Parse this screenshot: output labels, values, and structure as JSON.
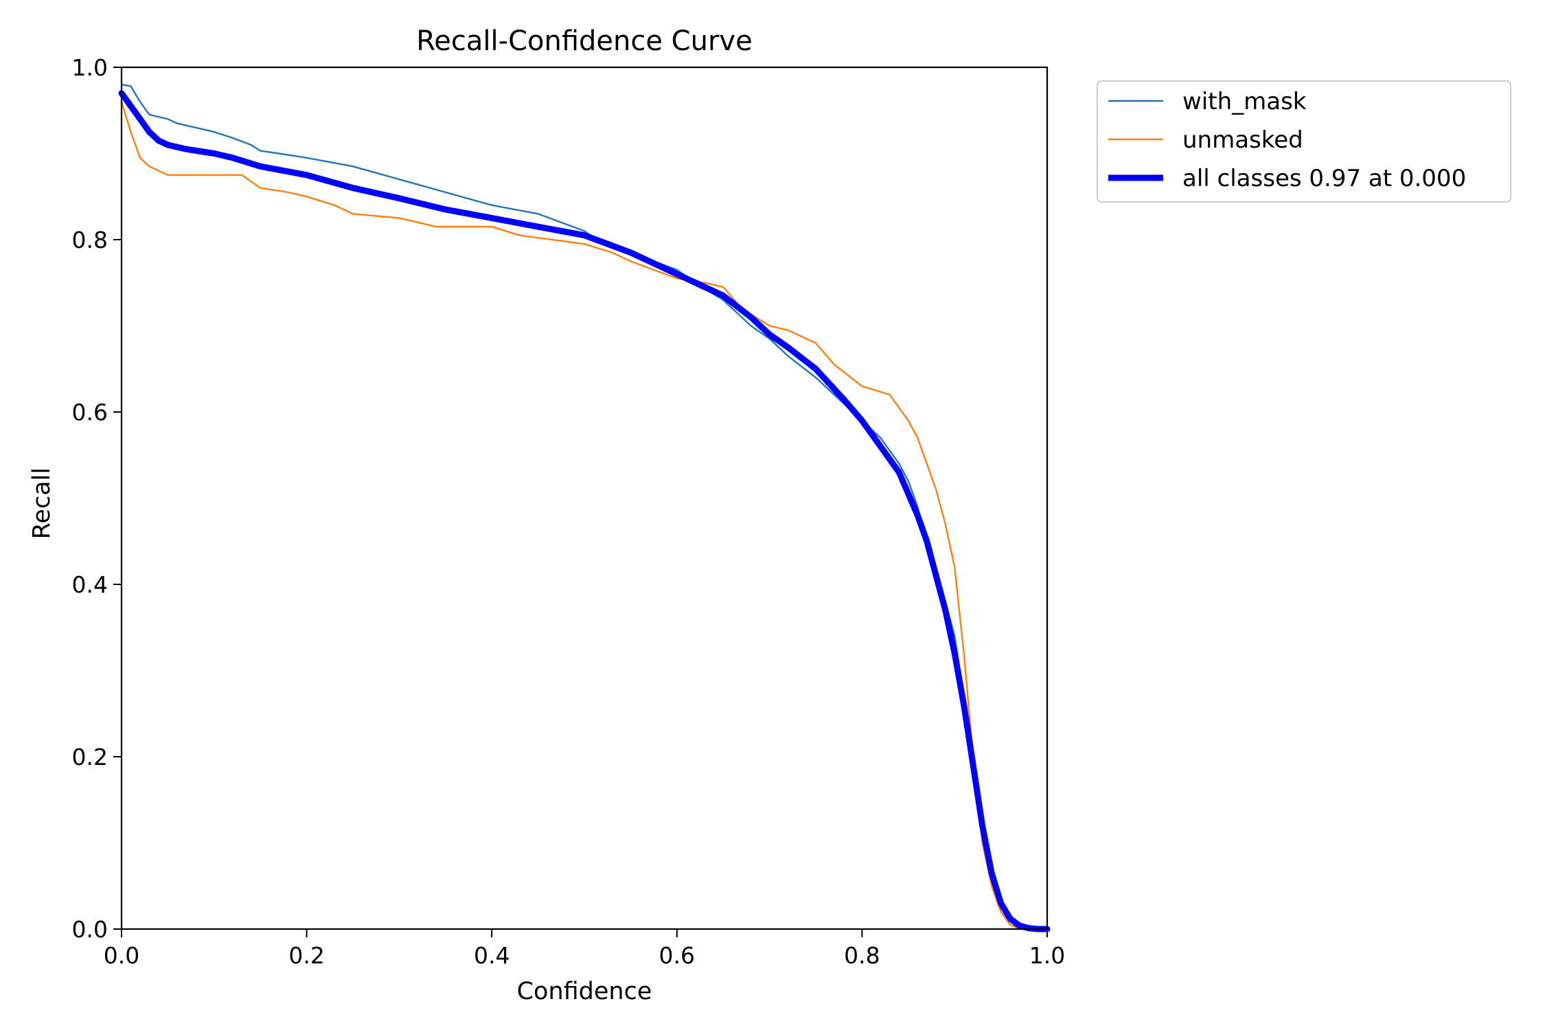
{
  "chart_data": {
    "type": "line",
    "title": "Recall-Confidence Curve",
    "xlabel": "Confidence",
    "ylabel": "Recall",
    "xlim": [
      0.0,
      1.0
    ],
    "ylim": [
      0.0,
      1.0
    ],
    "grid": false,
    "legend_position": "outside-top-right",
    "x_ticks": [
      "0.0",
      "0.2",
      "0.4",
      "0.6",
      "0.8",
      "1.0"
    ],
    "y_ticks": [
      "0.0",
      "0.2",
      "0.4",
      "0.6",
      "0.8",
      "1.0"
    ],
    "series": [
      {
        "name": "with_mask",
        "color": "#1f77b4",
        "x": [
          0.0,
          0.01,
          0.02,
          0.03,
          0.05,
          0.06,
          0.08,
          0.1,
          0.12,
          0.14,
          0.15,
          0.17,
          0.2,
          0.25,
          0.3,
          0.35,
          0.4,
          0.45,
          0.5,
          0.52,
          0.55,
          0.6,
          0.62,
          0.65,
          0.68,
          0.7,
          0.72,
          0.75,
          0.78,
          0.8,
          0.82,
          0.84,
          0.85,
          0.86,
          0.87,
          0.88,
          0.89,
          0.9,
          0.91,
          0.92,
          0.93,
          0.94,
          0.95,
          0.96,
          0.97,
          0.98,
          0.99,
          1.0
        ],
        "values": [
          0.98,
          0.978,
          0.96,
          0.945,
          0.94,
          0.935,
          0.93,
          0.925,
          0.918,
          0.91,
          0.903,
          0.9,
          0.895,
          0.885,
          0.87,
          0.855,
          0.84,
          0.83,
          0.81,
          0.795,
          0.785,
          0.765,
          0.75,
          0.73,
          0.7,
          0.685,
          0.665,
          0.64,
          0.61,
          0.59,
          0.57,
          0.54,
          0.52,
          0.49,
          0.45,
          0.42,
          0.38,
          0.34,
          0.27,
          0.19,
          0.12,
          0.07,
          0.035,
          0.015,
          0.005,
          0.0,
          0.0,
          0.0
        ]
      },
      {
        "name": "unmasked",
        "color": "#ff7f0e",
        "x": [
          0.0,
          0.01,
          0.02,
          0.03,
          0.04,
          0.05,
          0.1,
          0.13,
          0.15,
          0.18,
          0.2,
          0.23,
          0.25,
          0.3,
          0.34,
          0.4,
          0.43,
          0.5,
          0.53,
          0.55,
          0.6,
          0.63,
          0.65,
          0.67,
          0.7,
          0.72,
          0.75,
          0.77,
          0.8,
          0.83,
          0.85,
          0.86,
          0.87,
          0.88,
          0.89,
          0.9,
          0.91,
          0.92,
          0.93,
          0.94,
          0.95,
          0.96,
          0.97,
          0.98,
          1.0
        ],
        "values": [
          0.96,
          0.925,
          0.895,
          0.885,
          0.88,
          0.875,
          0.875,
          0.875,
          0.86,
          0.855,
          0.85,
          0.84,
          0.83,
          0.825,
          0.815,
          0.815,
          0.805,
          0.795,
          0.785,
          0.775,
          0.755,
          0.75,
          0.745,
          0.72,
          0.7,
          0.695,
          0.68,
          0.655,
          0.63,
          0.62,
          0.59,
          0.57,
          0.54,
          0.51,
          0.47,
          0.42,
          0.32,
          0.2,
          0.1,
          0.05,
          0.02,
          0.005,
          0.0,
          0.0,
          0.0
        ]
      },
      {
        "name": "all classes 0.97 at 0.000",
        "color": "#0000ff",
        "bold": true,
        "x": [
          0.0,
          0.01,
          0.02,
          0.03,
          0.04,
          0.05,
          0.07,
          0.1,
          0.12,
          0.15,
          0.2,
          0.25,
          0.3,
          0.35,
          0.4,
          0.45,
          0.5,
          0.55,
          0.6,
          0.63,
          0.65,
          0.68,
          0.7,
          0.72,
          0.75,
          0.78,
          0.8,
          0.82,
          0.84,
          0.86,
          0.87,
          0.88,
          0.89,
          0.9,
          0.91,
          0.92,
          0.93,
          0.94,
          0.95,
          0.96,
          0.97,
          0.98,
          0.99,
          1.0
        ],
        "values": [
          0.97,
          0.955,
          0.94,
          0.925,
          0.915,
          0.91,
          0.905,
          0.9,
          0.895,
          0.885,
          0.875,
          0.86,
          0.848,
          0.835,
          0.825,
          0.815,
          0.805,
          0.785,
          0.76,
          0.745,
          0.735,
          0.71,
          0.69,
          0.675,
          0.65,
          0.615,
          0.59,
          0.56,
          0.53,
          0.48,
          0.45,
          0.41,
          0.37,
          0.32,
          0.26,
          0.19,
          0.12,
          0.065,
          0.03,
          0.012,
          0.004,
          0.001,
          0.0,
          0.0
        ]
      }
    ]
  }
}
